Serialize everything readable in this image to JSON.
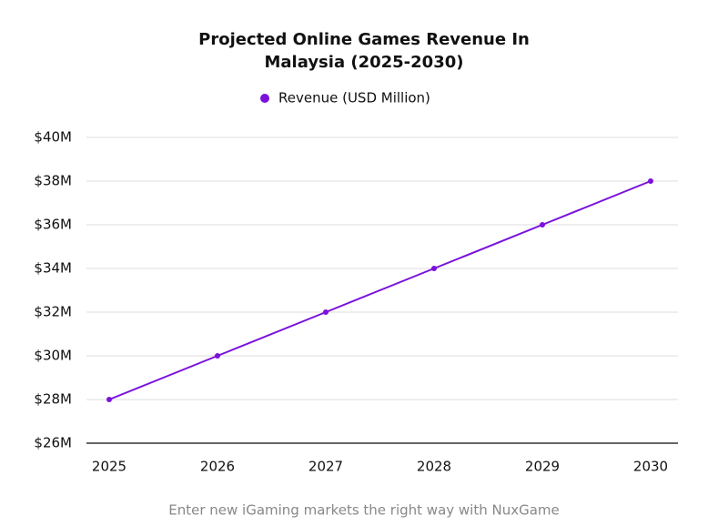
{
  "chart_data": {
    "type": "line",
    "title": [
      "Projected Online Games Revenue In",
      "Malaysia (2025-2030)"
    ],
    "categories": [
      "2025",
      "2026",
      "2027",
      "2028",
      "2029",
      "2030"
    ],
    "series": [
      {
        "name": "Revenue (USD Million)",
        "color": "#7a12dc",
        "values": [
          28,
          30,
          32,
          34,
          36,
          38
        ]
      }
    ],
    "ylim": [
      26,
      40
    ],
    "yticks": [
      {
        "value": 26,
        "label": "$26M"
      },
      {
        "value": 28,
        "label": "$28M"
      },
      {
        "value": 30,
        "label": "$30M"
      },
      {
        "value": 32,
        "label": "$32M"
      },
      {
        "value": 34,
        "label": "$34M"
      },
      {
        "value": 36,
        "label": "$36M"
      },
      {
        "value": 38,
        "label": "$38M"
      },
      {
        "value": 40,
        "label": "$40M"
      }
    ],
    "grid": true,
    "legend": "top",
    "caption": "Enter new iGaming markets the right way with NuxGame"
  }
}
